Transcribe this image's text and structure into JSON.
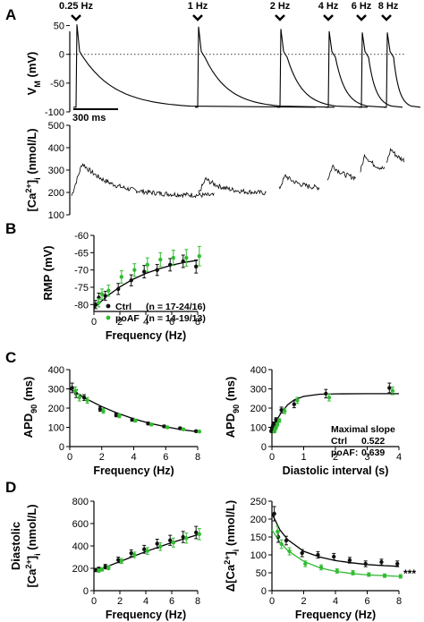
{
  "colors": {
    "ctrl": "#111111",
    "poaf": "#33bb33",
    "axis": "#000000"
  },
  "chart_data": [
    {
      "panel": "A",
      "type": "line",
      "ylabel": "V_M (mV)",
      "ylim": [
        -100,
        40
      ],
      "yticks": [
        -100,
        -50,
        0,
        50
      ],
      "scale_bar": "300 ms",
      "frequency_markers": [
        "0.25 Hz",
        "1 Hz",
        "2 Hz",
        "4 Hz",
        "6 Hz",
        "8 Hz"
      ],
      "dotted_reference": 0
    },
    {
      "panel": "A",
      "type": "line",
      "ylabel": "[Ca2+]i (nmol/L)",
      "ylim": [
        100,
        500
      ],
      "yticks": [
        100,
        200,
        300,
        400,
        500
      ]
    },
    {
      "panel": "B",
      "type": "scatter",
      "xlabel": "Frequency (Hz)",
      "ylabel": "RMP (mV)",
      "xlim": [
        0,
        8
      ],
      "ylim": [
        -82,
        -60
      ],
      "xticks": [
        0,
        2,
        4,
        6,
        8
      ],
      "yticks": [
        -80,
        -75,
        -70,
        -65,
        -60
      ],
      "legend": [
        {
          "name": "Ctrl",
          "n": "(n = 17-24/16)"
        },
        {
          "name": "poAF",
          "n": "(n = 14-19/13)"
        }
      ],
      "series": [
        {
          "name": "Ctrl",
          "x": [
            0.25,
            0.5,
            1,
            2,
            3,
            4,
            5,
            6,
            7,
            8
          ],
          "y": [
            -80,
            -78,
            -77.5,
            -75.5,
            -73,
            -70.5,
            -70,
            -68.5,
            -67.5,
            -69
          ],
          "err": [
            1.2,
            1.3,
            1.3,
            1.6,
            1.6,
            1.8,
            1.6,
            1.8,
            1.8,
            1.9
          ]
        },
        {
          "name": "poAF",
          "x": [
            0.25,
            0.5,
            1,
            2,
            3,
            4,
            5,
            6,
            7,
            8
          ],
          "y": [
            -79.5,
            -77,
            -76,
            -72,
            -70,
            -68.5,
            -67,
            -66.5,
            -66.5,
            -66
          ],
          "err": [
            1.2,
            1.5,
            1.6,
            1.8,
            1.8,
            2.0,
            2.0,
            2.2,
            2.4,
            2.8
          ]
        }
      ],
      "fit": {
        "x": [
          0,
          1,
          2,
          3,
          4,
          5,
          6,
          7,
          8
        ],
        "y": [
          -81,
          -77.6,
          -74.9,
          -72.7,
          -71,
          -69.7,
          -68.6,
          -67.8,
          -67.2
        ]
      }
    },
    {
      "panel": "C",
      "type": "scatter",
      "xlabel": "Frequency (Hz)",
      "ylabel": "APD90 (ms)",
      "xlim": [
        0,
        8
      ],
      "ylim": [
        0,
        400
      ],
      "xticks": [
        0,
        2,
        4,
        6,
        8
      ],
      "yticks": [
        0,
        100,
        200,
        300,
        400
      ],
      "series": [
        {
          "name": "Ctrl",
          "x": [
            0.25,
            0.5,
            1,
            2,
            3,
            4,
            5,
            6,
            7,
            8
          ],
          "y": [
            305,
            275,
            255,
            195,
            165,
            140,
            120,
            105,
            95,
            80
          ],
          "err": [
            25,
            20,
            15,
            12,
            10,
            8,
            7,
            6,
            6,
            5
          ]
        },
        {
          "name": "poAF",
          "x": [
            0.25,
            0.5,
            1,
            2,
            3,
            4,
            5,
            6,
            7,
            8
          ],
          "y": [
            290,
            255,
            240,
            185,
            160,
            135,
            115,
            100,
            90,
            78
          ],
          "err": [
            20,
            18,
            15,
            12,
            10,
            8,
            7,
            6,
            5,
            5
          ]
        }
      ],
      "fit": {
        "x": [
          0,
          1,
          2,
          3,
          4,
          5,
          6,
          7,
          8
        ],
        "y": [
          300,
          250,
          208,
          173,
          144,
          121,
          103,
          88,
          77
        ]
      }
    },
    {
      "panel": "C",
      "type": "scatter",
      "xlabel": "Diastolic interval (s)",
      "ylabel": "APD90 (ms)",
      "xlim": [
        0,
        4
      ],
      "ylim": [
        0,
        400
      ],
      "xticks": [
        0,
        1,
        2,
        3,
        4
      ],
      "yticks": [
        0,
        100,
        200,
        300,
        400
      ],
      "annotation": {
        "title": "Maximal slope",
        "rows": [
          {
            "name": "Ctrl",
            "value": "0.522"
          },
          {
            "name": "poAF:",
            "value": "0.639"
          }
        ]
      },
      "series": [
        {
          "name": "Ctrl",
          "x": [
            0.03,
            0.05,
            0.08,
            0.12,
            0.18,
            0.35,
            0.75,
            1.75,
            3.75
          ],
          "y": [
            80,
            95,
            105,
            120,
            140,
            190,
            220,
            275,
            305
          ],
          "err": [
            5,
            6,
            7,
            8,
            10,
            15,
            18,
            22,
            25
          ]
        },
        {
          "name": "poAF",
          "x": [
            0.03,
            0.05,
            0.08,
            0.12,
            0.18,
            0.35,
            0.75,
            1.75,
            3.75
          ],
          "y": [
            78,
            90,
            100,
            115,
            135,
            185,
            240,
            255,
            290
          ],
          "err": [
            5,
            6,
            7,
            8,
            10,
            14,
            16,
            18,
            20
          ]
        }
      ],
      "fit": {
        "x": [
          0,
          0.1,
          0.2,
          0.3,
          0.5,
          0.7,
          1,
          1.5,
          2,
          3,
          4
        ],
        "y": [
          70,
          114,
          151,
          178,
          218,
          243,
          261,
          272,
          274,
          275,
          275
        ]
      }
    },
    {
      "panel": "D",
      "type": "scatter",
      "xlabel": "Frequency (Hz)",
      "ylabel": "Diastolic [Ca2+]i (nmol/L)",
      "xlim": [
        0,
        8
      ],
      "ylim": [
        0,
        800
      ],
      "xticks": [
        0,
        2,
        4,
        6,
        8
      ],
      "yticks": [
        0,
        200,
        400,
        600,
        800
      ],
      "series": [
        {
          "name": "Ctrl",
          "x": [
            0.25,
            0.5,
            1,
            2,
            3,
            4,
            5,
            6,
            7,
            8
          ],
          "y": [
            185,
            195,
            215,
            275,
            335,
            370,
            420,
            450,
            480,
            520
          ],
          "err": [
            15,
            15,
            20,
            25,
            30,
            35,
            40,
            45,
            50,
            55
          ]
        },
        {
          "name": "poAF",
          "x": [
            0.25,
            0.5,
            1,
            2,
            3,
            4,
            5,
            6,
            7,
            8
          ],
          "y": [
            180,
            190,
            205,
            265,
            320,
            355,
            395,
            430,
            470,
            505
          ],
          "err": [
            15,
            15,
            18,
            22,
            25,
            30,
            35,
            40,
            45,
            50
          ]
        }
      ],
      "fit": {
        "x": [
          0,
          1,
          2,
          3,
          4,
          5,
          6,
          7,
          8
        ],
        "y": [
          170,
          215,
          260,
          305,
          350,
          390,
          430,
          465,
          500
        ]
      }
    },
    {
      "panel": "D",
      "type": "scatter",
      "xlabel": "Frequency (Hz)",
      "ylabel": "Δ[Ca2+]i (nmol/L)",
      "xlim": [
        0,
        8
      ],
      "ylim": [
        0,
        250
      ],
      "xticks": [
        0,
        2,
        4,
        6,
        8
      ],
      "yticks": [
        0,
        50,
        100,
        150,
        200,
        250
      ],
      "significance": "***",
      "series": [
        {
          "name": "Ctrl",
          "x": [
            0.25,
            0.5,
            1,
            2,
            3,
            4,
            5,
            6,
            7,
            8
          ],
          "y": [
            215,
            150,
            140,
            105,
            100,
            95,
            85,
            75,
            80,
            75
          ],
          "err": [
            20,
            15,
            12,
            10,
            9,
            9,
            8,
            8,
            8,
            8
          ]
        },
        {
          "name": "poAF",
          "x": [
            0.25,
            0.5,
            1,
            2,
            3,
            4,
            5,
            6,
            7,
            8
          ],
          "y": [
            165,
            130,
            110,
            75,
            65,
            55,
            50,
            45,
            42,
            40
          ],
          "err": [
            15,
            12,
            10,
            8,
            7,
            6,
            6,
            5,
            5,
            5
          ]
        }
      ],
      "fits": [
        {
          "name": "Ctrl",
          "x": [
            0,
            0.5,
            1,
            2,
            3,
            4,
            5,
            6,
            7,
            8
          ],
          "y": [
            215,
            170,
            142,
            110,
            94,
            84,
            78,
            73,
            70,
            68
          ]
        },
        {
          "name": "poAF",
          "x": [
            0,
            0.5,
            1,
            2,
            3,
            4,
            5,
            6,
            7,
            8
          ],
          "y": [
            170,
            135,
            112,
            82,
            64,
            54,
            48,
            44,
            42,
            40
          ]
        }
      ]
    }
  ],
  "panels": {
    "a": "A",
    "b": "B",
    "c": "C",
    "d": "D"
  }
}
